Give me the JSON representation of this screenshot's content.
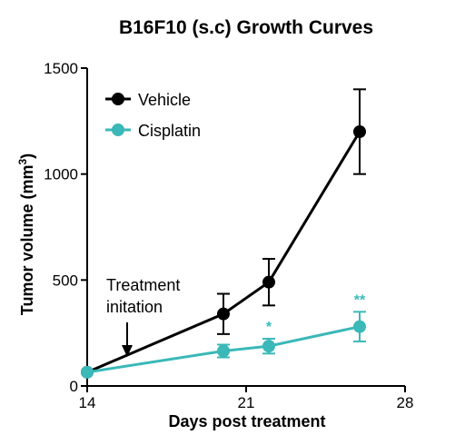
{
  "chart_data": {
    "type": "line",
    "title": "B16F10 (s.c) Growth Curves",
    "xlabel": "Days post treatment",
    "ylabel": "Tumor volume (mm³)",
    "ylabel_main": "Tumor volume (mm",
    "ylabel_sup": "3",
    "ylabel_end": ")",
    "xlim": [
      14,
      28
    ],
    "ylim": [
      0,
      1500
    ],
    "xticks": [
      14,
      21,
      28
    ],
    "yticks": [
      0,
      500,
      1000,
      1500
    ],
    "legend_position": "top-left",
    "series": [
      {
        "name": "Vehicle",
        "color": "#000000",
        "x": [
          14,
          20,
          22,
          26
        ],
        "y": [
          65,
          340,
          490,
          1200
        ],
        "error": [
          0,
          95,
          110,
          200
        ],
        "significance": [
          "",
          "",
          "",
          ""
        ]
      },
      {
        "name": "Cisplatin",
        "color": "#3bb8b8",
        "x": [
          14,
          20,
          22,
          26
        ],
        "y": [
          65,
          165,
          188,
          280
        ],
        "error": [
          0,
          30,
          35,
          70
        ],
        "significance": [
          "",
          "",
          "*",
          "**"
        ]
      }
    ],
    "annotation": {
      "lines": [
        "Treatment",
        "initation"
      ],
      "x": 14
    }
  }
}
